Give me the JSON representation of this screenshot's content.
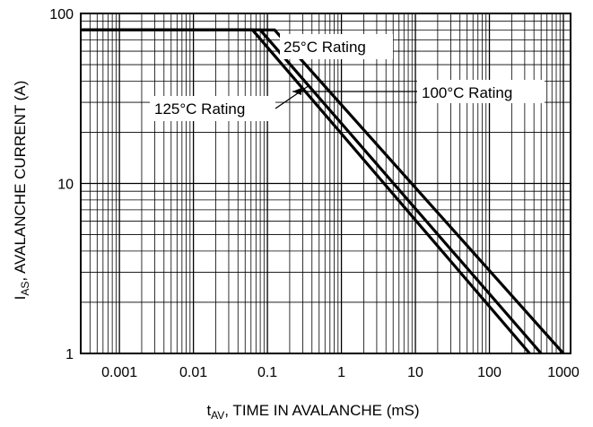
{
  "chart_data": {
    "type": "line",
    "title": "",
    "xlabel": {
      "main": "t",
      "sub": "AV",
      "rest": ", TIME IN AVALANCHE (mS)"
    },
    "ylabel": {
      "main": "I",
      "sub": "AS",
      "rest": ", AVALANCHE CURRENT (A)"
    },
    "x_scale": "log",
    "y_scale": "log",
    "xlim": [
      0.0003,
      1250
    ],
    "ylim": [
      1,
      100
    ],
    "grid": true,
    "x_ticks": [
      {
        "value": 0.001,
        "label": "0.001"
      },
      {
        "value": 0.01,
        "label": "0.01"
      },
      {
        "value": 0.1,
        "label": "0.1"
      },
      {
        "value": 1,
        "label": "1"
      },
      {
        "value": 10,
        "label": "10"
      },
      {
        "value": 100,
        "label": "100"
      },
      {
        "value": 1000,
        "label": "1000"
      }
    ],
    "y_ticks": [
      {
        "value": 1,
        "label": "1"
      },
      {
        "value": 10,
        "label": "10"
      },
      {
        "value": 100,
        "label": "100"
      }
    ],
    "series": [
      {
        "name": "25°C Rating",
        "x": [
          0.0003,
          0.125,
          1000
        ],
        "y": [
          80,
          80,
          1
        ]
      },
      {
        "name": "100°C Rating",
        "x": [
          0.0003,
          0.08,
          500
        ],
        "y": [
          80,
          80,
          1
        ]
      },
      {
        "name": "125°C Rating",
        "x": [
          0.0003,
          0.063,
          350
        ],
        "y": [
          80,
          80,
          1
        ]
      }
    ],
    "annotations": [
      {
        "text": "25°C Rating",
        "series": "25°C Rating"
      },
      {
        "text": "100°C Rating",
        "series": "100°C Rating"
      },
      {
        "text": "125°C Rating",
        "series": "125°C Rating"
      }
    ]
  }
}
